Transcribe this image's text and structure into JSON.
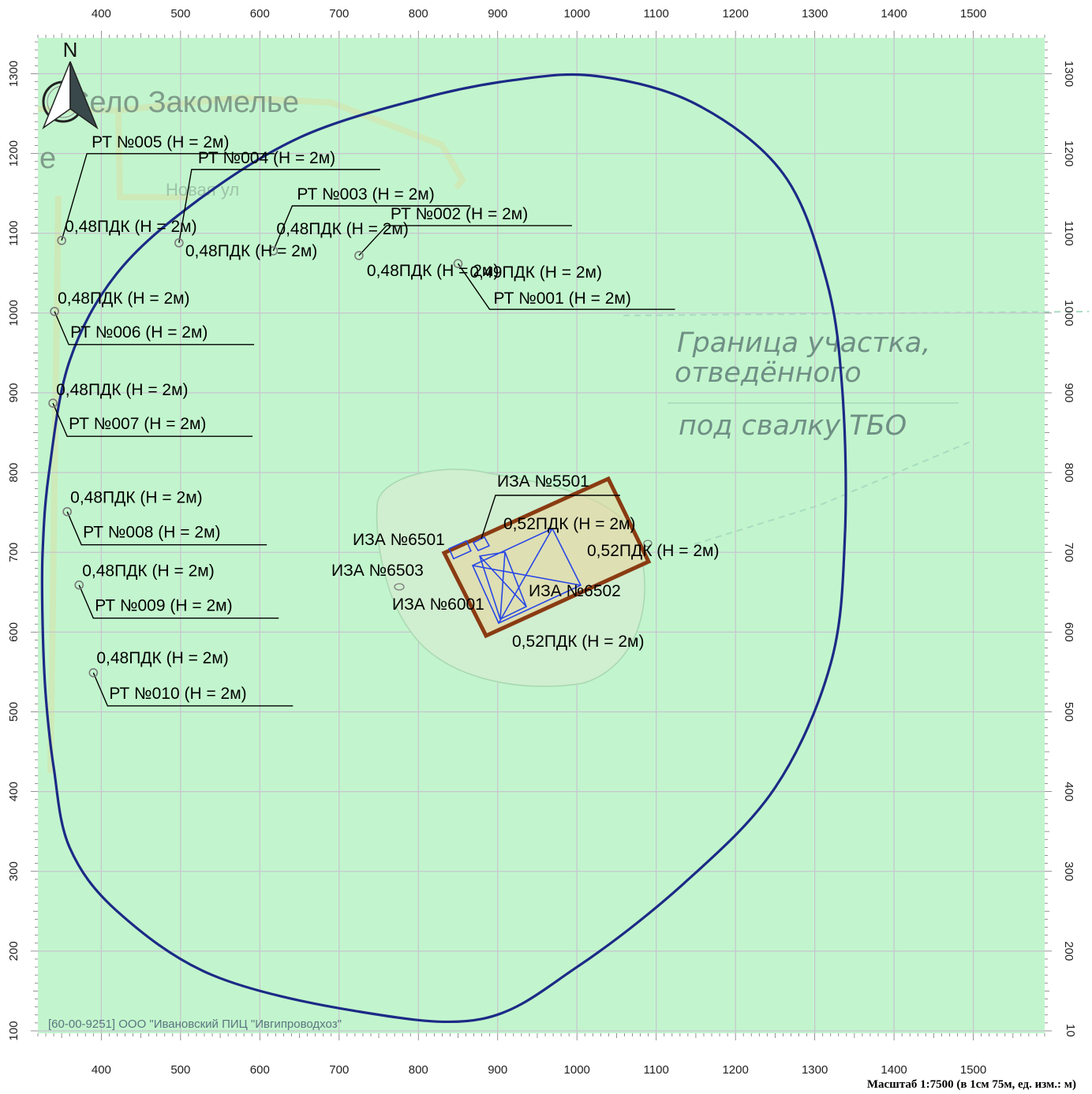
{
  "map": {
    "x_ticks": [
      "400",
      "500",
      "600",
      "700",
      "800",
      "900",
      "1000",
      "1100",
      "1200",
      "1300",
      "1400",
      "1500"
    ],
    "y_ticks": [
      "100",
      "200",
      "300",
      "400",
      "500",
      "600",
      "700",
      "800",
      "900",
      "1000",
      "1100",
      "1200",
      "1300"
    ],
    "x_range": [
      320,
      1590
    ],
    "y_range": [
      97,
      1345
    ],
    "north_label": "N",
    "colors": {
      "background": "#c2f5cd",
      "grid": "#c7c4cf",
      "isoline": "#1c2a86",
      "source_outline": "#8a3b12",
      "source_lines": "#2846e6",
      "label_line": "#000000",
      "marker": "#7a7a7a"
    }
  },
  "background": {
    "village": "Село Закомелье",
    "partial_e": "е",
    "street": "Новая ул",
    "boundary_line1": "Граница участка,",
    "boundary_line2": "отведённого",
    "boundary_line3": "под свалку ТБО"
  },
  "points": [
    {
      "id": "pt-001",
      "x": 850,
      "y": 1062,
      "name": "РТ №001 (Н = 2м)",
      "value": "0,49ПДК (Н = 2м)"
    },
    {
      "id": "pt-002",
      "x": 725,
      "y": 1072,
      "name": "РТ №002 (Н = 2м)",
      "value": "0,48ПДК (Н = 2м)"
    },
    {
      "id": "pt-003",
      "x": 617,
      "y": 1078,
      "name": "РТ №003 (Н = 2м)",
      "value": "0,48ПДК (Н = 2м)"
    },
    {
      "id": "pt-004",
      "x": 498,
      "y": 1088,
      "name": "РТ №004 (Н = 2м)",
      "value": "0,48ПДК (Н = 2м)"
    },
    {
      "id": "pt-005",
      "x": 350,
      "y": 1091,
      "name": "РТ №005 (Н = 2м)",
      "value": "0,48ПДК (Н = 2м)"
    },
    {
      "id": "pt-006",
      "x": 341,
      "y": 1002,
      "name": "РТ №006 (Н = 2м)",
      "value": "0,48ПДК (Н = 2м)"
    },
    {
      "id": "pt-007",
      "x": 339,
      "y": 887,
      "name": "РТ №007 (Н = 2м)",
      "value": "0,48ПДК (Н = 2м)"
    },
    {
      "id": "pt-008",
      "x": 357,
      "y": 751,
      "name": "РТ №008 (Н = 2м)",
      "value": "0,48ПДК (Н = 2м)"
    },
    {
      "id": "pt-009",
      "x": 372,
      "y": 659,
      "name": "РТ №009 (Н = 2м)",
      "value": "0,48ПДК (Н = 2м)"
    },
    {
      "id": "pt-010",
      "x": 390,
      "y": 549,
      "name": "РТ №010 (Н = 2м)",
      "value": "0,48ПДК (Н = 2м)"
    }
  ],
  "sources": [
    {
      "id": "iza-5501",
      "label": "ИЗА №5501"
    },
    {
      "id": "iza-6501",
      "label": "ИЗА №6501"
    },
    {
      "id": "iza-6503",
      "label": "ИЗА №6503"
    },
    {
      "id": "iza-6001",
      "label": "ИЗА №6001"
    },
    {
      "id": "iza-6502",
      "label": "ИЗА №6502"
    }
  ],
  "source_values": {
    "top": "0,52ПДК (Н = 2м)",
    "right": "0,52ПДК (Н = 2м)",
    "bottom": "0,52ПДК (Н = 2м)"
  },
  "footer": {
    "organization": "[60-00-9251] ООО \"Ивановский ПИЦ \"Ивгипроводхоз\"",
    "scale": "Масштаб 1:7500 (в 1см 75м, ед. изм.: м)",
    "cut_right_label": "10"
  }
}
